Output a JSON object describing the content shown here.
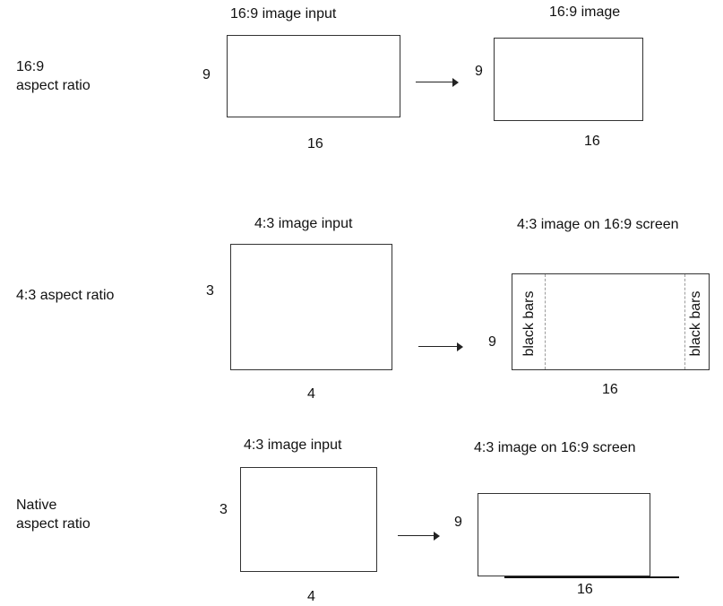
{
  "rows": [
    {
      "label_lines": [
        "16:9",
        "aspect ratio"
      ],
      "input": {
        "title": "16:9 image input",
        "height_label": "9",
        "width_label": "16"
      },
      "output": {
        "title": "16:9 image",
        "height_label": "9",
        "width_label": "16"
      }
    },
    {
      "label_lines": [
        "4:3 aspect ratio"
      ],
      "input": {
        "title": "4:3 image input",
        "height_label": "3",
        "width_label": "4"
      },
      "output": {
        "title": "4:3 image on 16:9 screen",
        "height_label": "9",
        "width_label": "16",
        "left_bar_label": "black bars",
        "right_bar_label": "black bars"
      }
    },
    {
      "label_lines": [
        "Native",
        "aspect ratio"
      ],
      "input": {
        "title": "4:3 image input",
        "height_label": "3",
        "width_label": "4"
      },
      "output": {
        "title": "4:3 image on 16:9 screen",
        "height_label": "9",
        "width_label": "16"
      }
    }
  ]
}
